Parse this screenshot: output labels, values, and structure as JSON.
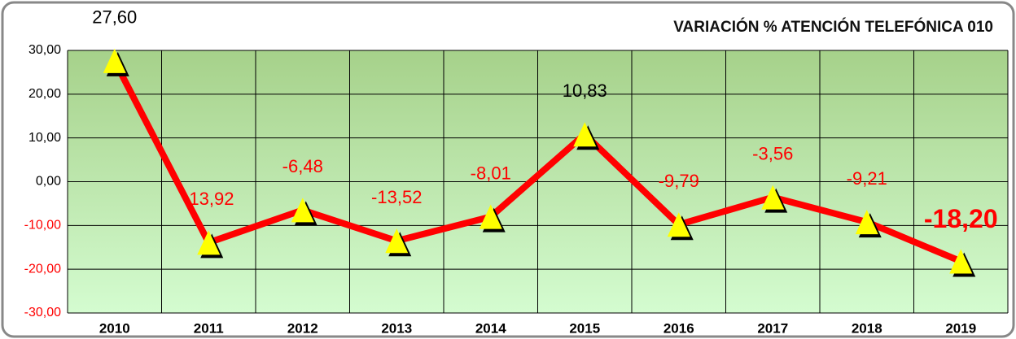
{
  "chart_data": {
    "type": "line",
    "title": "VARIACIÓN % ATENCIÓN TELEFÓNICA 010",
    "categories": [
      "2010",
      "2011",
      "2012",
      "2013",
      "2014",
      "2015",
      "2016",
      "2017",
      "2018",
      "2019"
    ],
    "series": [
      {
        "color": "#ff0000",
        "marker_color": "#ffff00",
        "values": [
          27.6,
          -13.92,
          -6.48,
          -13.52,
          -8.01,
          10.83,
          -9.79,
          -3.56,
          -9.21,
          -18.2
        ],
        "value_labels": [
          "27,60",
          "-13,92",
          "-6,48",
          "-13,52",
          "-8,01",
          "10,83",
          "-9,79",
          "-3,56",
          "-9,21",
          "-18,20"
        ]
      }
    ],
    "negative_color": "#ff0000",
    "highlight": 9,
    "ylim": [
      -30,
      30
    ],
    "yticks": [
      {
        "value": -30,
        "label": "-30,00"
      },
      {
        "value": -20,
        "label": "-20,00"
      },
      {
        "value": -10,
        "label": "-10,00"
      },
      {
        "value": 0,
        "label": "0,00"
      },
      {
        "value": 10,
        "label": "10,00"
      },
      {
        "value": 20,
        "label": "20,00"
      },
      {
        "value": 30,
        "label": "30,00"
      }
    ],
    "grid": true
  }
}
